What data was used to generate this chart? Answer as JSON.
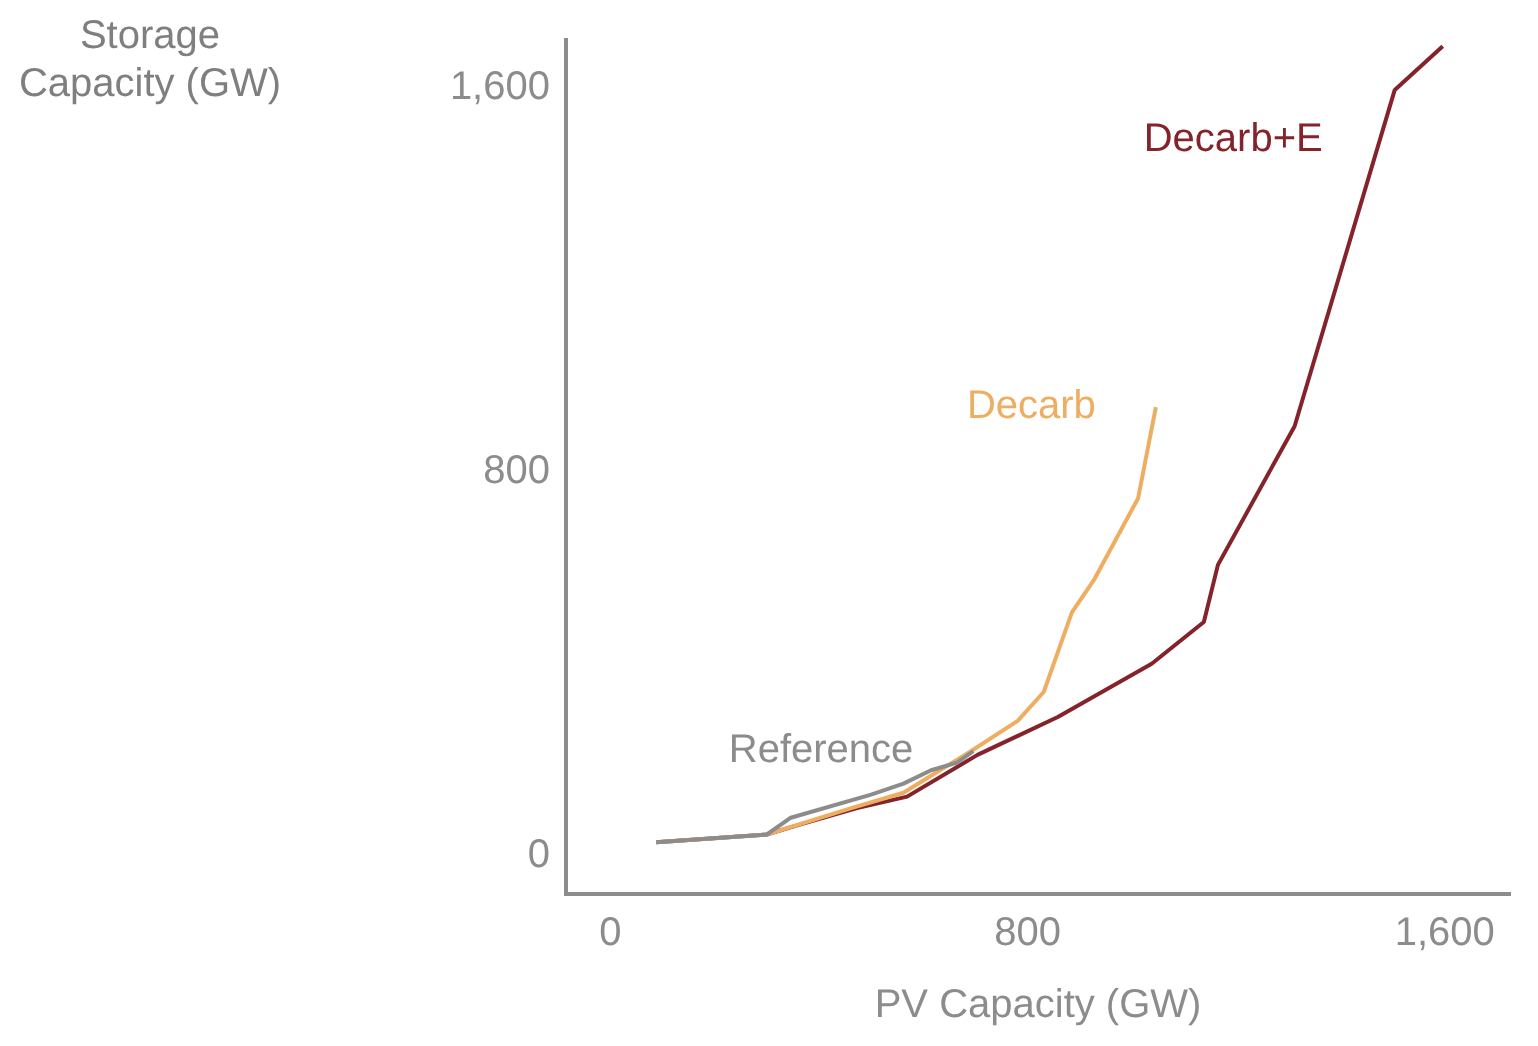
{
  "chart_data": {
    "type": "line",
    "xlabel": "PV Capacity (GW)",
    "ylabel": "Storage Capacity (GW)",
    "xlim": [
      -85,
      1725
    ],
    "ylim": [
      -80,
      1700
    ],
    "xticks": [
      0,
      800,
      {
        "value": 1600,
        "label": "1,600"
      }
    ],
    "yticks": [
      0,
      800,
      {
        "value": 1600,
        "label": "1,600"
      }
    ],
    "grid": false,
    "legend": false,
    "marker": "none",
    "series": [
      {
        "name": "Reference",
        "color": "#8c8c8c",
        "x": [
          88,
          300,
          346,
          500,
          562,
          615,
          665,
          696
        ],
        "values": [
          28,
          44,
          79,
          127,
          150,
          178,
          194,
          218
        ]
      },
      {
        "name": "Decarb",
        "color": "#eeae62",
        "x": [
          88,
          300,
          462,
          562,
          692,
          781,
          831,
          885,
          927,
          1012,
          1046
        ],
        "values": [
          28,
          44,
          99,
          131,
          218,
          281,
          341,
          507,
          574,
          745,
          935
        ]
      },
      {
        "name": "Decarb+E",
        "color": "#84232a",
        "x": [
          88,
          300,
          358,
          473,
          569,
          704,
          858,
          1038,
          1138,
          1165,
          1312,
          1504,
          1596
        ],
        "values": [
          28,
          44,
          63,
          99,
          123,
          210,
          289,
          400,
          487,
          606,
          895,
          1596,
          1687
        ]
      }
    ]
  }
}
